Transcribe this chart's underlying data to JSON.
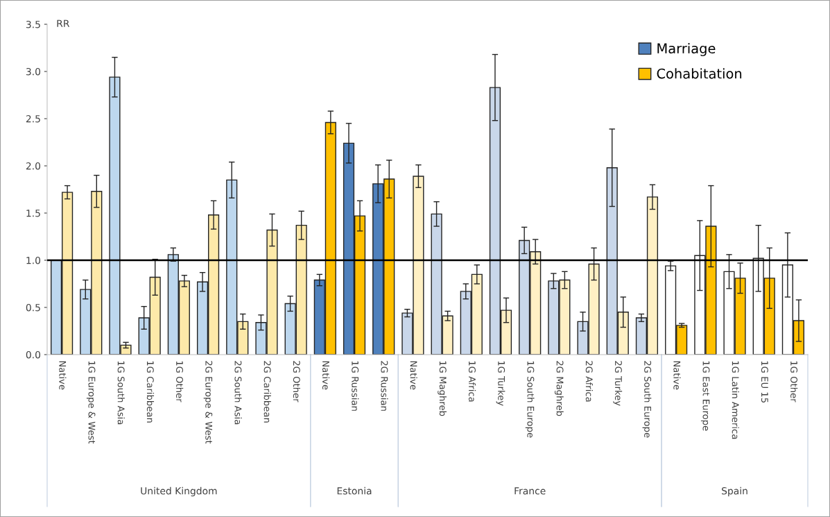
{
  "chart_data": {
    "type": "bar",
    "ylabel": "RR",
    "categories": [
      "Native",
      "1G Europe & West",
      "1G South Asia",
      "1G Caribbean",
      "1G Other",
      "2G Europe & West",
      "2G South Asia",
      "2G Caribbean",
      "2G Other",
      "Native",
      "1G Russian",
      "2G Russian",
      "Native",
      "1G Maghreb",
      "1G Africa",
      "1G Turkey",
      "1G South Europe",
      "2G Maghreb",
      "2G Africa",
      "2G Turkey",
      "2G South Europe",
      "Native",
      "1G East Europe",
      "1G Latin America",
      "1G EU 15",
      "1G Other"
    ],
    "series": [
      {
        "name": "Marriage",
        "color": "#4f81bd",
        "colors": [
          "#bdd7ee",
          "#bdd7ee",
          "#bdd7ee",
          "#bdd7ee",
          "#bdd7ee",
          "#bdd7ee",
          "#bdd7ee",
          "#bdd7ee",
          "#bdd7ee",
          "#4f81bd",
          "#4f81bd",
          "#4f81bd",
          "#c9d7ea",
          "#c9d7ea",
          "#c9d7ea",
          "#c9d7ea",
          "#c9d7ea",
          "#c9d7ea",
          "#c9d7ea",
          "#c9d7ea",
          "#c9d7ea",
          "#ffffff",
          "#ffffff",
          "#ffffff",
          "#ffffff",
          "#ffffff"
        ],
        "values": [
          1.0,
          0.69,
          2.94,
          0.39,
          1.06,
          0.77,
          1.85,
          0.34,
          0.54,
          0.79,
          2.24,
          1.81,
          0.44,
          1.49,
          0.67,
          2.83,
          1.21,
          0.78,
          0.35,
          1.98,
          0.39,
          0.94,
          1.05,
          0.88,
          1.02,
          0.95
        ],
        "errors": [
          null,
          0.1,
          0.21,
          0.12,
          0.07,
          0.1,
          0.19,
          0.08,
          0.08,
          0.06,
          0.21,
          0.2,
          0.04,
          0.13,
          0.08,
          0.35,
          0.14,
          0.08,
          0.1,
          0.41,
          0.04,
          0.05,
          0.37,
          0.18,
          0.35,
          0.34
        ]
      },
      {
        "name": "Cohabitation",
        "color": "#ffc000",
        "colors": [
          "#fde9a9",
          "#fde9a9",
          "#fde9a9",
          "#fde9a9",
          "#fde9a9",
          "#fde9a9",
          "#fde9a9",
          "#fde9a9",
          "#fde9a9",
          "#ffc000",
          "#ffc000",
          "#ffc000",
          "#fff0c4",
          "#fff0c4",
          "#fff0c4",
          "#fff0c4",
          "#fff0c4",
          "#fff0c4",
          "#fff0c4",
          "#fff0c4",
          "#fff0c4",
          "#ffc000",
          "#ffc000",
          "#ffc000",
          "#ffc000",
          "#ffc000"
        ],
        "values": [
          1.72,
          1.73,
          0.1,
          0.82,
          0.78,
          1.48,
          0.35,
          1.32,
          1.37,
          2.46,
          1.47,
          1.86,
          1.89,
          0.41,
          0.85,
          0.47,
          1.09,
          0.79,
          0.96,
          0.45,
          1.67,
          0.31,
          1.36,
          0.81,
          0.81,
          0.36
        ],
        "errors": [
          0.07,
          0.17,
          0.03,
          0.19,
          0.06,
          0.15,
          0.08,
          0.17,
          0.15,
          0.12,
          0.16,
          0.2,
          0.12,
          0.05,
          0.1,
          0.13,
          0.13,
          0.09,
          0.17,
          0.16,
          0.13,
          0.02,
          0.43,
          0.16,
          0.32,
          0.22
        ]
      }
    ],
    "ylim": [
      0,
      3.5
    ],
    "yticks": [
      {
        "value": 0,
        "label": "0.0"
      },
      {
        "value": 0.5,
        "label": "0.5"
      },
      {
        "value": 1,
        "label": "1.0"
      },
      {
        "value": 1.5,
        "label": "1.5"
      },
      {
        "value": 2,
        "label": "2.0"
      },
      {
        "value": 2.5,
        "label": "2.5"
      },
      {
        "value": 3,
        "label": "3.0"
      },
      {
        "value": 3.5,
        "label": "3.5"
      }
    ],
    "ref_lines": [
      {
        "axis": "y",
        "value": 1,
        "color": "#000000"
      }
    ],
    "annotations": [
      "United Kingdom",
      "Estonia",
      "France",
      "Spain"
    ],
    "grid": false,
    "legend": "top right"
  }
}
